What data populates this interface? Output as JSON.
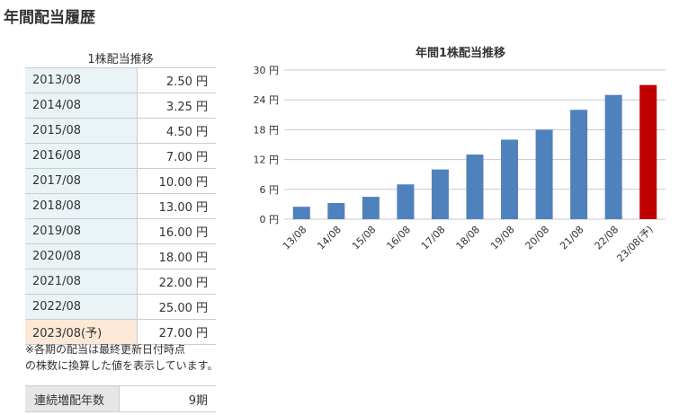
{
  "page": {
    "title": "年間配当履歴"
  },
  "table": {
    "caption": "1株配当推移",
    "rows": [
      {
        "period": "2013/08",
        "amount": "2.50 円"
      },
      {
        "period": "2014/08",
        "amount": "3.25 円"
      },
      {
        "period": "2015/08",
        "amount": "4.50 円"
      },
      {
        "period": "2016/08",
        "amount": "7.00 円"
      },
      {
        "period": "2017/08",
        "amount": "10.00 円"
      },
      {
        "period": "2018/08",
        "amount": "13.00 円"
      },
      {
        "period": "2019/08",
        "amount": "16.00 円"
      },
      {
        "period": "2020/08",
        "amount": "18.00 円"
      },
      {
        "period": "2021/08",
        "amount": "22.00 円"
      },
      {
        "period": "2022/08",
        "amount": "25.00 円"
      },
      {
        "period": "2023/08(予)",
        "amount": "27.00 円",
        "forecast": true
      }
    ],
    "note_line1": "※各期の配当は最終更新日付時点",
    "note_line2": "の株数に換算した値を表示しています。"
  },
  "streak": {
    "label": "連続増配年数",
    "value": "9期"
  },
  "colors": {
    "bar": "#4f81bd",
    "forecast_bar": "#c00000",
    "forecast_cell": "#fde8d7",
    "period_cell": "#eaf4f7",
    "grid": "#c8c8c8"
  },
  "chart_data": {
    "type": "bar",
    "title": "年間1株配当推移",
    "categories": [
      "13/08",
      "14/08",
      "15/08",
      "16/08",
      "17/08",
      "18/08",
      "19/08",
      "20/08",
      "21/08",
      "22/08",
      "23/08(予)"
    ],
    "values": [
      2.5,
      3.25,
      4.5,
      7,
      10,
      13,
      16,
      18,
      22,
      25,
      27
    ],
    "highlight_index": 10,
    "ylim": [
      0,
      30
    ],
    "yticks": [
      0,
      6,
      12,
      18,
      24,
      30
    ],
    "ytick_labels": [
      "0 円",
      "6 円",
      "12 円",
      "18 円",
      "24 円",
      "30 円"
    ],
    "xlabel": "",
    "ylabel": "",
    "grid": true,
    "legend": "none"
  }
}
